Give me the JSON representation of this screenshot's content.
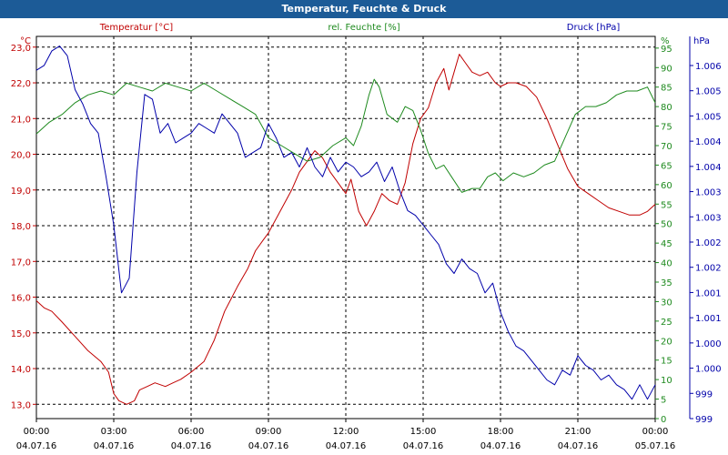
{
  "chart_data": {
    "type": "line",
    "title": "Temperatur, Feuchte & Druck",
    "colors": {
      "temperature": "#c00000",
      "humidity": "#1e8a1e",
      "pressure": "#0000aa",
      "grid": "#000000",
      "title_bg": "#1c5b97"
    },
    "axes": {
      "left": {
        "unit": "°C",
        "range": [
          12.6,
          23.3
        ],
        "ticks": [
          "13,0",
          "14,0",
          "15,0",
          "16,0",
          "17,0",
          "18,0",
          "19,0",
          "20,0",
          "21,0",
          "22,0",
          "23,0"
        ]
      },
      "right1": {
        "unit": "%",
        "range": [
          0,
          98
        ],
        "ticks": [
          "0",
          "5",
          "10",
          "15",
          "20",
          "25",
          "30",
          "35",
          "40",
          "45",
          "50",
          "55",
          "60",
          "65",
          "70",
          "75",
          "80",
          "85",
          "90",
          "95"
        ]
      },
      "right2": {
        "unit": "hPa",
        "range": [
          998.6,
          1006.5
        ],
        "ticks": [
          "999",
          "999",
          "1.000",
          "1.000",
          "1.001",
          "1.001",
          "1.002",
          "1.002",
          "1.003",
          "1.003",
          "1.004",
          "1.004",
          "1.005",
          "1.005",
          "1.006"
        ]
      },
      "x": {
        "times": [
          "00:00",
          "03:00",
          "06:00",
          "09:00",
          "12:00",
          "15:00",
          "18:00",
          "21:00",
          "00:00"
        ],
        "dates": [
          "04.07.16",
          "04.07.16",
          "04.07.16",
          "04.07.16",
          "04.07.16",
          "04.07.16",
          "04.07.16",
          "04.07.16",
          "05.07.16"
        ],
        "range_hours": [
          0,
          24
        ]
      }
    },
    "grid": true,
    "series": [
      {
        "name": "Temperatur [°C]",
        "key": "temperature",
        "axis": "left",
        "points": [
          [
            0,
            15.9
          ],
          [
            0.3,
            15.7
          ],
          [
            0.6,
            15.6
          ],
          [
            1,
            15.3
          ],
          [
            1.5,
            14.9
          ],
          [
            2,
            14.5
          ],
          [
            2.5,
            14.2
          ],
          [
            2.8,
            13.9
          ],
          [
            3,
            13.3
          ],
          [
            3.2,
            13.1
          ],
          [
            3.5,
            13.0
          ],
          [
            3.8,
            13.1
          ],
          [
            4,
            13.4
          ],
          [
            4.3,
            13.5
          ],
          [
            4.6,
            13.6
          ],
          [
            5,
            13.5
          ],
          [
            5.3,
            13.6
          ],
          [
            5.6,
            13.7
          ],
          [
            6,
            13.9
          ],
          [
            6.5,
            14.2
          ],
          [
            6.9,
            14.8
          ],
          [
            7.3,
            15.6
          ],
          [
            7.8,
            16.3
          ],
          [
            8.2,
            16.8
          ],
          [
            8.5,
            17.3
          ],
          [
            8.8,
            17.6
          ],
          [
            9.0,
            17.8
          ],
          [
            9.3,
            18.2
          ],
          [
            9.6,
            18.6
          ],
          [
            9.9,
            19.0
          ],
          [
            10.2,
            19.5
          ],
          [
            10.5,
            19.8
          ],
          [
            10.8,
            20.1
          ],
          [
            11.1,
            19.9
          ],
          [
            11.4,
            19.5
          ],
          [
            11.7,
            19.2
          ],
          [
            12.0,
            18.9
          ],
          [
            12.2,
            19.3
          ],
          [
            12.5,
            18.4
          ],
          [
            12.8,
            18.0
          ],
          [
            13.1,
            18.4
          ],
          [
            13.4,
            18.9
          ],
          [
            13.7,
            18.7
          ],
          [
            14.0,
            18.6
          ],
          [
            14.3,
            19.2
          ],
          [
            14.6,
            20.3
          ],
          [
            14.9,
            21.0
          ],
          [
            15.2,
            21.3
          ],
          [
            15.5,
            22.0
          ],
          [
            15.8,
            22.4
          ],
          [
            16.0,
            21.8
          ],
          [
            16.2,
            22.3
          ],
          [
            16.4,
            22.8
          ],
          [
            16.6,
            22.6
          ],
          [
            16.9,
            22.3
          ],
          [
            17.2,
            22.2
          ],
          [
            17.5,
            22.3
          ],
          [
            17.8,
            22.0
          ],
          [
            18.0,
            21.9
          ],
          [
            18.3,
            22.0
          ],
          [
            18.6,
            22.0
          ],
          [
            19.0,
            21.9
          ],
          [
            19.4,
            21.6
          ],
          [
            19.8,
            21.0
          ],
          [
            20.2,
            20.3
          ],
          [
            20.6,
            19.6
          ],
          [
            21.0,
            19.1
          ],
          [
            21.4,
            18.9
          ],
          [
            21.8,
            18.7
          ],
          [
            22.2,
            18.5
          ],
          [
            22.6,
            18.4
          ],
          [
            23.0,
            18.3
          ],
          [
            23.4,
            18.3
          ],
          [
            23.7,
            18.4
          ],
          [
            24.0,
            18.6
          ]
        ]
      },
      {
        "name": "rel. Feuchte [%]",
        "key": "humidity",
        "axis": "right1",
        "points": [
          [
            0,
            73
          ],
          [
            0.5,
            76
          ],
          [
            1,
            78
          ],
          [
            1.5,
            81
          ],
          [
            2,
            83
          ],
          [
            2.5,
            84
          ],
          [
            3,
            83
          ],
          [
            3.5,
            86
          ],
          [
            4,
            85
          ],
          [
            4.5,
            84
          ],
          [
            5,
            86
          ],
          [
            5.5,
            85
          ],
          [
            6,
            84
          ],
          [
            6.5,
            86
          ],
          [
            7,
            84
          ],
          [
            7.5,
            82
          ],
          [
            8,
            80
          ],
          [
            8.5,
            78
          ],
          [
            9,
            72
          ],
          [
            9.5,
            70
          ],
          [
            10,
            68
          ],
          [
            10.5,
            66
          ],
          [
            11,
            67
          ],
          [
            11.5,
            70
          ],
          [
            12,
            72
          ],
          [
            12.3,
            70
          ],
          [
            12.6,
            75
          ],
          [
            12.9,
            83
          ],
          [
            13.1,
            87
          ],
          [
            13.3,
            85
          ],
          [
            13.6,
            78
          ],
          [
            14,
            76
          ],
          [
            14.3,
            80
          ],
          [
            14.6,
            79
          ],
          [
            14.9,
            74
          ],
          [
            15.2,
            68
          ],
          [
            15.5,
            64
          ],
          [
            15.8,
            65
          ],
          [
            16.1,
            62
          ],
          [
            16.5,
            58
          ],
          [
            16.9,
            59
          ],
          [
            17.2,
            59
          ],
          [
            17.5,
            62
          ],
          [
            17.8,
            63
          ],
          [
            18.1,
            61
          ],
          [
            18.5,
            63
          ],
          [
            18.9,
            62
          ],
          [
            19.3,
            63
          ],
          [
            19.7,
            65
          ],
          [
            20.1,
            66
          ],
          [
            20.5,
            72
          ],
          [
            20.9,
            78
          ],
          [
            21.3,
            80
          ],
          [
            21.7,
            80
          ],
          [
            22.1,
            81
          ],
          [
            22.5,
            83
          ],
          [
            22.9,
            84
          ],
          [
            23.3,
            84
          ],
          [
            23.7,
            85
          ],
          [
            24.0,
            81
          ]
        ]
      },
      {
        "name": "Druck [hPa]",
        "key": "pressure",
        "axis": "right2",
        "points": [
          [
            0,
            1005.8
          ],
          [
            0.3,
            1005.9
          ],
          [
            0.6,
            1006.2
          ],
          [
            0.9,
            1006.3
          ],
          [
            1.2,
            1006.1
          ],
          [
            1.5,
            1005.4
          ],
          [
            1.8,
            1005.1
          ],
          [
            2.1,
            1004.7
          ],
          [
            2.4,
            1004.5
          ],
          [
            2.7,
            1003.6
          ],
          [
            3.0,
            1002.6
          ],
          [
            3.3,
            1001.2
          ],
          [
            3.6,
            1001.5
          ],
          [
            3.9,
            1003.7
          ],
          [
            4.2,
            1005.3
          ],
          [
            4.5,
            1005.2
          ],
          [
            4.8,
            1004.5
          ],
          [
            5.1,
            1004.7
          ],
          [
            5.4,
            1004.3
          ],
          [
            5.7,
            1004.4
          ],
          [
            6.0,
            1004.5
          ],
          [
            6.3,
            1004.7
          ],
          [
            6.6,
            1004.6
          ],
          [
            6.9,
            1004.5
          ],
          [
            7.2,
            1004.9
          ],
          [
            7.5,
            1004.7
          ],
          [
            7.8,
            1004.5
          ],
          [
            8.1,
            1004.0
          ],
          [
            8.4,
            1004.1
          ],
          [
            8.7,
            1004.2
          ],
          [
            9.0,
            1004.7
          ],
          [
            9.3,
            1004.4
          ],
          [
            9.6,
            1004.0
          ],
          [
            9.9,
            1004.1
          ],
          [
            10.2,
            1003.8
          ],
          [
            10.5,
            1004.2
          ],
          [
            10.8,
            1003.8
          ],
          [
            11.1,
            1003.6
          ],
          [
            11.4,
            1004.0
          ],
          [
            11.7,
            1003.7
          ],
          [
            12.0,
            1003.9
          ],
          [
            12.3,
            1003.8
          ],
          [
            12.6,
            1003.6
          ],
          [
            12.9,
            1003.7
          ],
          [
            13.2,
            1003.9
          ],
          [
            13.5,
            1003.5
          ],
          [
            13.8,
            1003.8
          ],
          [
            14.1,
            1003.3
          ],
          [
            14.4,
            1002.9
          ],
          [
            14.7,
            1002.8
          ],
          [
            15.0,
            1002.6
          ],
          [
            15.3,
            1002.4
          ],
          [
            15.6,
            1002.2
          ],
          [
            15.9,
            1001.8
          ],
          [
            16.2,
            1001.6
          ],
          [
            16.5,
            1001.9
          ],
          [
            16.8,
            1001.7
          ],
          [
            17.1,
            1001.6
          ],
          [
            17.4,
            1001.2
          ],
          [
            17.7,
            1001.4
          ],
          [
            18.0,
            1000.8
          ],
          [
            18.3,
            1000.4
          ],
          [
            18.6,
            1000.1
          ],
          [
            18.9,
            1000.0
          ],
          [
            19.2,
            999.8
          ],
          [
            19.5,
            999.6
          ],
          [
            19.8,
            999.4
          ],
          [
            20.1,
            999.3
          ],
          [
            20.4,
            999.6
          ],
          [
            20.7,
            999.5
          ],
          [
            21.0,
            999.9
          ],
          [
            21.3,
            999.7
          ],
          [
            21.6,
            999.6
          ],
          [
            21.9,
            999.4
          ],
          [
            22.2,
            999.5
          ],
          [
            22.5,
            999.3
          ],
          [
            22.8,
            999.2
          ],
          [
            23.1,
            999.0
          ],
          [
            23.4,
            999.3
          ],
          [
            23.7,
            999.0
          ],
          [
            24.0,
            999.3
          ]
        ]
      }
    ]
  }
}
